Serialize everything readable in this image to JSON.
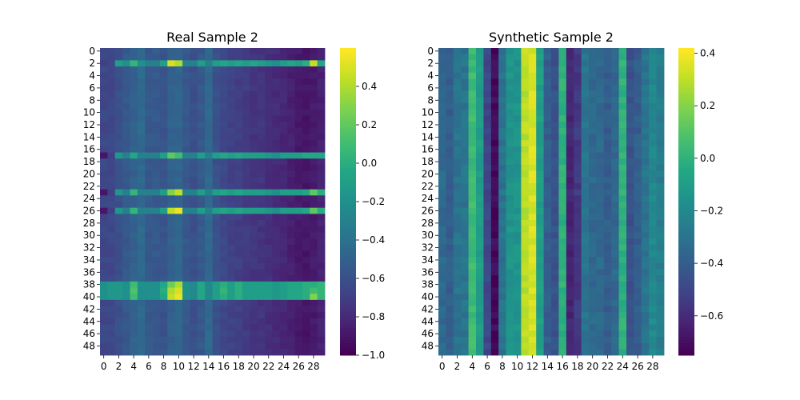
{
  "chart_data": [
    {
      "type": "heatmap",
      "title": "Real Sample 2",
      "rows": 50,
      "cols": 30,
      "x_tick_labels": [
        "0",
        "2",
        "4",
        "6",
        "8",
        "10",
        "12",
        "14",
        "16",
        "18",
        "20",
        "22",
        "24",
        "26",
        "28"
      ],
      "y_tick_labels": [
        "0",
        "2",
        "4",
        "6",
        "8",
        "10",
        "12",
        "14",
        "16",
        "18",
        "20",
        "22",
        "24",
        "26",
        "28",
        "30",
        "32",
        "34",
        "36",
        "38",
        "40",
        "42",
        "44",
        "46",
        "48"
      ],
      "colorbar": {
        "min": -1.0,
        "max": 0.6,
        "ticks": [
          -1.0,
          -0.8,
          -0.6,
          -0.4,
          -0.2,
          0.0,
          0.2,
          0.4
        ],
        "tick_labels": [
          "−1.0",
          "−0.8",
          "−0.6",
          "−0.4",
          "−0.2",
          "0.0",
          "0.2",
          "0.4"
        ]
      },
      "colormap": "viridis",
      "column_base": [
        -0.65,
        -0.65,
        -0.6,
        -0.55,
        -0.5,
        -0.45,
        -0.55,
        -0.55,
        -0.58,
        -0.5,
        -0.48,
        -0.55,
        -0.6,
        -0.55,
        -0.45,
        -0.6,
        -0.65,
        -0.68,
        -0.7,
        -0.72,
        -0.75,
        -0.75,
        -0.78,
        -0.8,
        -0.82,
        -0.85,
        -0.88,
        -0.9,
        -0.88,
        -0.85
      ],
      "highlight_rows": {
        "2": [
          -0.7,
          -0.65,
          -0.1,
          -0.2,
          0.05,
          -0.2,
          -0.3,
          -0.3,
          -0.1,
          0.5,
          0.4,
          -0.3,
          -0.3,
          -0.1,
          -0.3,
          -0.1,
          -0.05,
          -0.1,
          -0.05,
          -0.1,
          -0.05,
          -0.1,
          -0.15,
          -0.2,
          -0.1,
          -0.05,
          -0.1,
          0.0,
          0.45,
          -0.05
        ],
        "17": [
          -0.9,
          -0.7,
          -0.15,
          -0.3,
          -0.05,
          -0.3,
          -0.3,
          -0.3,
          -0.1,
          0.2,
          0.1,
          -0.3,
          -0.3,
          -0.1,
          -0.3,
          -0.1,
          -0.05,
          -0.1,
          -0.05,
          -0.1,
          -0.1,
          -0.1,
          -0.15,
          -0.2,
          -0.1,
          -0.1,
          -0.1,
          -0.05,
          -0.05,
          -0.05
        ],
        "23": [
          -0.9,
          -0.7,
          -0.15,
          -0.3,
          0.05,
          -0.3,
          -0.3,
          -0.3,
          -0.1,
          0.3,
          0.45,
          -0.3,
          -0.3,
          -0.1,
          -0.3,
          -0.1,
          -0.05,
          -0.1,
          -0.05,
          -0.1,
          -0.1,
          -0.1,
          -0.15,
          -0.2,
          -0.1,
          -0.1,
          -0.1,
          -0.05,
          0.2,
          0.0
        ],
        "26": [
          -0.9,
          -0.7,
          -0.15,
          -0.3,
          0.05,
          -0.3,
          -0.3,
          -0.3,
          -0.1,
          0.45,
          0.55,
          -0.3,
          -0.3,
          -0.1,
          -0.3,
          -0.1,
          -0.05,
          -0.1,
          -0.05,
          -0.1,
          -0.1,
          -0.1,
          -0.15,
          -0.2,
          -0.1,
          -0.1,
          -0.1,
          -0.05,
          0.2,
          0.0
        ],
        "38": [
          -0.2,
          -0.15,
          -0.15,
          -0.2,
          0.1,
          -0.2,
          -0.2,
          -0.2,
          -0.05,
          0.25,
          0.4,
          -0.2,
          -0.25,
          -0.05,
          -0.25,
          -0.1,
          0.0,
          -0.1,
          0.0,
          -0.1,
          -0.1,
          -0.1,
          -0.1,
          -0.15,
          -0.1,
          -0.05,
          -0.05,
          0.0,
          0.0,
          0.05
        ],
        "39": [
          -0.2,
          -0.15,
          -0.15,
          -0.2,
          0.15,
          -0.2,
          -0.2,
          -0.2,
          0.0,
          0.4,
          0.5,
          -0.2,
          -0.25,
          -0.05,
          -0.25,
          -0.1,
          0.05,
          -0.1,
          0.0,
          -0.1,
          -0.1,
          -0.1,
          -0.1,
          -0.15,
          -0.1,
          -0.05,
          -0.05,
          0.0,
          0.1,
          0.05
        ],
        "40": [
          -0.2,
          -0.15,
          -0.15,
          -0.2,
          0.1,
          -0.2,
          -0.2,
          -0.2,
          -0.05,
          0.45,
          0.55,
          -0.2,
          -0.25,
          -0.05,
          -0.25,
          -0.1,
          0.0,
          -0.1,
          0.0,
          -0.1,
          -0.1,
          -0.1,
          -0.1,
          -0.15,
          -0.1,
          -0.05,
          -0.05,
          0.0,
          0.3,
          0.05
        ]
      }
    },
    {
      "type": "heatmap",
      "title": "Synthetic Sample 2",
      "rows": 50,
      "cols": 30,
      "x_tick_labels": [
        "0",
        "2",
        "4",
        "6",
        "8",
        "10",
        "12",
        "14",
        "16",
        "18",
        "20",
        "22",
        "24",
        "26",
        "28"
      ],
      "y_tick_labels": [
        "0",
        "2",
        "4",
        "6",
        "8",
        "10",
        "12",
        "14",
        "16",
        "18",
        "20",
        "22",
        "24",
        "26",
        "28",
        "30",
        "32",
        "34",
        "36",
        "38",
        "40",
        "42",
        "44",
        "46",
        "48"
      ],
      "colorbar": {
        "min": -0.75,
        "max": 0.42,
        "ticks": [
          -0.6,
          -0.4,
          -0.2,
          0.0,
          0.2,
          0.4
        ],
        "tick_labels": [
          "−0.6",
          "−0.4",
          "−0.2",
          "0.0",
          "0.2",
          "0.4"
        ]
      },
      "colormap": "viridis",
      "column_base": [
        -0.35,
        -0.4,
        -0.3,
        -0.3,
        0.05,
        -0.1,
        -0.5,
        -0.72,
        -0.3,
        -0.15,
        -0.15,
        0.3,
        0.35,
        -0.1,
        -0.4,
        -0.45,
        0.0,
        -0.62,
        -0.55,
        -0.3,
        -0.35,
        -0.35,
        -0.4,
        -0.35,
        0.0,
        -0.45,
        -0.4,
        -0.3,
        -0.2,
        -0.25
      ],
      "row_variation": 0.08
    }
  ]
}
